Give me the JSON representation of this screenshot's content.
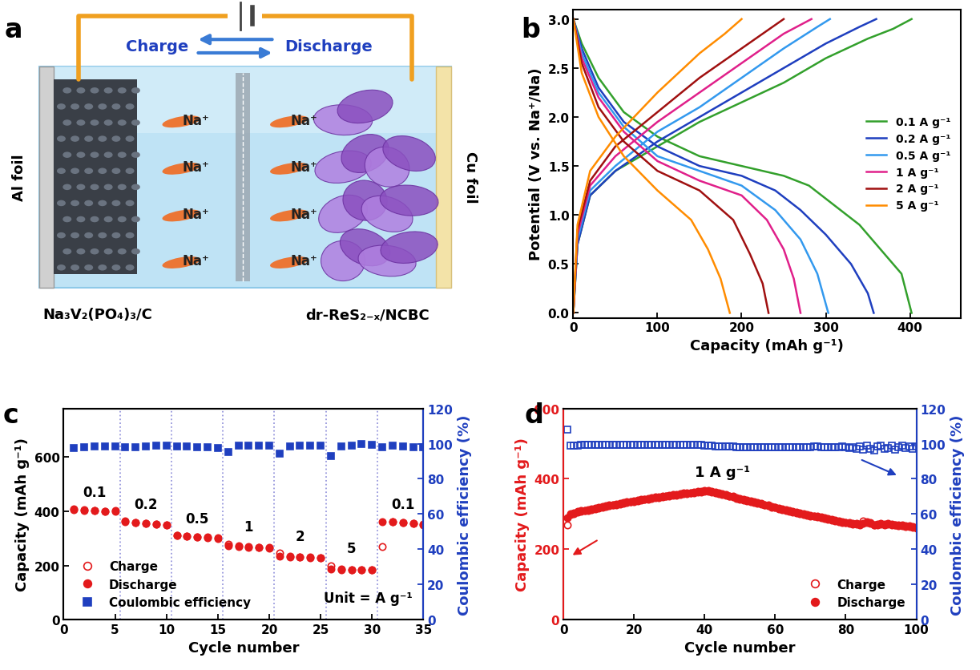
{
  "diagram": {
    "panel_label": "a",
    "directions": {
      "charge": "Charge",
      "discharge": "Discharge"
    },
    "ions": {
      "cathode_side": [
        "Na⁺",
        "Na⁺",
        "Na⁺",
        "Na⁺"
      ],
      "anode_side": [
        "Na⁺",
        "Na⁺",
        "Na⁺",
        "Na⁺"
      ]
    },
    "current_collectors": {
      "cathode": "Al foil",
      "anode": "Cu foil"
    },
    "electrodes": {
      "cathode": "Na₃V₂(PO₄)₃/C",
      "anode": "dr-ReS₂₋ₓ/NCBC"
    }
  },
  "chart_data": [
    {
      "panel_label": "b",
      "type": "line",
      "xlabel": "Capacity (mAh g⁻¹)",
      "ylabel": "Potential (V vs. Na⁺/Na)",
      "xlim": [
        0,
        460
      ],
      "xticks": [
        0,
        100,
        200,
        300,
        400
      ],
      "ylim": [
        -0.05,
        3.1
      ],
      "yticks": [
        {
          "value": 0,
          "label": "0.0"
        },
        0.5,
        {
          "value": 1,
          "label": "1.0"
        },
        1.5,
        {
          "value": 2,
          "label": "2.0"
        },
        2.5,
        {
          "value": 3,
          "label": "3.0"
        }
      ],
      "legend": "center right",
      "series": [
        {
          "name": "0.1 A g⁻¹",
          "color": "#33a02c",
          "curves": [
            {
              "x": [
                0,
                10,
                30,
                60,
                100,
                150,
                200,
                250,
                280,
                310,
                340,
                370,
                390,
                402
              ],
              "values": [
                3.0,
                2.75,
                2.4,
                2.05,
                1.8,
                1.6,
                1.5,
                1.4,
                1.3,
                1.1,
                0.9,
                0.6,
                0.4,
                0.0
              ]
            },
            {
              "x": [
                0,
                5,
                20,
                50,
                100,
                150,
                200,
                250,
                300,
                350,
                380,
                402
              ],
              "values": [
                0.0,
                0.7,
                1.2,
                1.45,
                1.7,
                1.95,
                2.15,
                2.35,
                2.6,
                2.8,
                2.9,
                3.0
              ]
            }
          ]
        },
        {
          "name": "0.2 A g⁻¹",
          "color": "#1f3fbf",
          "curves": [
            {
              "x": [
                0,
                10,
                30,
                60,
                100,
                150,
                200,
                240,
                270,
                300,
                330,
                350,
                357
              ],
              "values": [
                3.0,
                2.7,
                2.3,
                1.95,
                1.7,
                1.5,
                1.4,
                1.25,
                1.05,
                0.8,
                0.5,
                0.2,
                0.0
              ]
            },
            {
              "x": [
                0,
                5,
                20,
                50,
                100,
                150,
                200,
                250,
                300,
                340,
                360
              ],
              "values": [
                0.0,
                0.7,
                1.2,
                1.45,
                1.75,
                2.0,
                2.25,
                2.5,
                2.75,
                2.92,
                3.0
              ]
            }
          ]
        },
        {
          "name": "0.5 A g⁻¹",
          "color": "#3399ee",
          "curves": [
            {
              "x": [
                0,
                10,
                30,
                60,
                100,
                150,
                200,
                240,
                270,
                290,
                303
              ],
              "values": [
                3.0,
                2.65,
                2.25,
                1.9,
                1.6,
                1.45,
                1.3,
                1.05,
                0.75,
                0.4,
                0.0
              ]
            },
            {
              "x": [
                0,
                5,
                20,
                50,
                100,
                150,
                200,
                250,
                290,
                305
              ],
              "values": [
                0.0,
                0.75,
                1.25,
                1.5,
                1.85,
                2.1,
                2.4,
                2.7,
                2.92,
                3.0
              ]
            }
          ]
        },
        {
          "name": "1 A g⁻¹",
          "color": "#e0208a",
          "curves": [
            {
              "x": [
                0,
                10,
                30,
                60,
                100,
                150,
                200,
                230,
                250,
                262,
                270
              ],
              "values": [
                3.0,
                2.6,
                2.2,
                1.85,
                1.55,
                1.35,
                1.2,
                0.95,
                0.65,
                0.35,
                0.0
              ]
            },
            {
              "x": [
                0,
                5,
                20,
                50,
                100,
                150,
                200,
                250,
                283
              ],
              "values": [
                0.0,
                0.8,
                1.3,
                1.6,
                1.95,
                2.25,
                2.55,
                2.85,
                3.0
              ]
            }
          ]
        },
        {
          "name": "2 A g⁻¹",
          "color": "#a01010",
          "curves": [
            {
              "x": [
                0,
                10,
                30,
                60,
                100,
                150,
                190,
                210,
                225,
                232
              ],
              "values": [
                3.0,
                2.55,
                2.1,
                1.75,
                1.45,
                1.25,
                0.95,
                0.6,
                0.3,
                0.0
              ]
            },
            {
              "x": [
                0,
                5,
                20,
                50,
                100,
                150,
                200,
                230,
                250
              ],
              "values": [
                0.0,
                0.85,
                1.35,
                1.7,
                2.05,
                2.4,
                2.7,
                2.88,
                3.0
              ]
            }
          ]
        },
        {
          "name": "5 A g⁻¹",
          "color": "#ff8c00",
          "curves": [
            {
              "x": [
                0,
                10,
                30,
                60,
                100,
                140,
                160,
                175,
                186
              ],
              "values": [
                3.0,
                2.45,
                2.0,
                1.6,
                1.25,
                0.95,
                0.65,
                0.35,
                0.0
              ]
            },
            {
              "x": [
                0,
                5,
                20,
                50,
                100,
                150,
                180,
                200
              ],
              "values": [
                0.0,
                0.9,
                1.45,
                1.8,
                2.25,
                2.65,
                2.85,
                3.0
              ]
            }
          ]
        }
      ]
    },
    {
      "panel_label": "c",
      "type": "scatter",
      "xlabel": "Cycle number",
      "ylabel": "Capacity (mAh g⁻¹)",
      "y2label": "Coulombic efficiency (%)",
      "xlim": [
        0,
        35
      ],
      "xticks": [
        0,
        5,
        10,
        15,
        20,
        25,
        30,
        35
      ],
      "ylim": [
        0,
        780
      ],
      "yticks": [
        0,
        200,
        400,
        600
      ],
      "y2lim": [
        0,
        120
      ],
      "y2ticks": [
        0,
        20,
        40,
        60,
        80,
        100,
        120
      ],
      "legend": "lower left",
      "annotation": "Unit = A g⁻¹",
      "rate_labels": [
        "0.1",
        "0.2",
        "0.5",
        "1",
        "2",
        "5",
        "0.1"
      ],
      "dividers": [
        5.5,
        10.5,
        15.5,
        20.5,
        25.5,
        30.5
      ],
      "x": [
        1,
        2,
        3,
        4,
        5,
        6,
        7,
        8,
        9,
        10,
        11,
        12,
        13,
        14,
        15,
        16,
        17,
        18,
        19,
        20,
        21,
        22,
        23,
        24,
        25,
        26,
        27,
        28,
        29,
        30,
        31,
        32,
        33,
        34,
        35
      ],
      "series": [
        {
          "name": "Charge",
          "color": "#e31a1c",
          "marker": "open_circle",
          "values": [
            408,
            406,
            404,
            400,
            402,
            364,
            360,
            357,
            354,
            351,
            311,
            308,
            306,
            304,
            302,
            280,
            272,
            270,
            268,
            266,
            245,
            234,
            231,
            230,
            229,
            200,
            187,
            185,
            184,
            184,
            270,
            363,
            360,
            356,
            352
          ]
        },
        {
          "name": "Discharge",
          "color": "#e31a1c",
          "marker": "filled_circle",
          "values": [
            405,
            403,
            402,
            400,
            400,
            362,
            358,
            355,
            352,
            350,
            310,
            307,
            305,
            303,
            300,
            272,
            270,
            268,
            267,
            265,
            235,
            232,
            230,
            229,
            228,
            186,
            185,
            184,
            184,
            184,
            363,
            362,
            358,
            355,
            350
          ]
        },
        {
          "name": "Coulombic efficiency",
          "color": "#1f3fbf",
          "marker": "filled_square",
          "axis": "y2",
          "values": [
            97.5,
            98,
            98.5,
            98.5,
            98.5,
            98,
            98,
            98.5,
            99,
            99,
            98.5,
            98.5,
            98,
            98,
            97.5,
            95,
            99,
            99,
            99,
            99,
            94.5,
            98.5,
            99,
            99,
            99,
            93,
            98.5,
            99,
            100,
            99.5,
            98,
            99,
            98.5,
            98,
            98
          ]
        }
      ]
    },
    {
      "panel_label": "d",
      "type": "scatter",
      "xlabel": "Cycle number",
      "ylabel": "Capacity (mAh g⁻¹)",
      "y2label": "Coulombic efficiency (%)",
      "xlim": [
        0,
        100
      ],
      "xticks": [
        0,
        20,
        40,
        60,
        80,
        100
      ],
      "ylim": [
        0,
        600
      ],
      "yticks": [
        0,
        200,
        400,
        600
      ],
      "y2lim": [
        0,
        120
      ],
      "y2ticks": [
        0,
        20,
        40,
        60,
        80,
        100,
        120
      ],
      "legend": "lower right",
      "annotation": "1 A g⁻¹",
      "x": [
        1,
        2,
        3,
        4,
        5,
        6,
        7,
        8,
        9,
        10,
        11,
        12,
        13,
        14,
        15,
        16,
        17,
        18,
        19,
        20,
        21,
        22,
        23,
        24,
        25,
        26,
        27,
        28,
        29,
        30,
        31,
        32,
        33,
        34,
        35,
        36,
        37,
        38,
        39,
        40,
        41,
        42,
        43,
        44,
        45,
        46,
        47,
        48,
        49,
        50,
        51,
        52,
        53,
        54,
        55,
        56,
        57,
        58,
        59,
        60,
        61,
        62,
        63,
        64,
        65,
        66,
        67,
        68,
        69,
        70,
        71,
        72,
        73,
        74,
        75,
        76,
        77,
        78,
        79,
        80,
        81,
        82,
        83,
        84,
        85,
        86,
        87,
        88,
        89,
        90,
        91,
        92,
        93,
        94,
        95,
        96,
        97,
        98,
        99,
        100
      ],
      "series": [
        {
          "name": "Charge",
          "color": "#e31a1c",
          "marker": "open_circle",
          "values": [
            270,
            300,
            304,
            307,
            309,
            311,
            313,
            315,
            317,
            319,
            321,
            323,
            325,
            327,
            329,
            331,
            333,
            335,
            336,
            338,
            340,
            341,
            343,
            345,
            346,
            348,
            349,
            351,
            352,
            354,
            355,
            356,
            358,
            359,
            360,
            361,
            363,
            364,
            365,
            366,
            366,
            365,
            363,
            360,
            358,
            355,
            352,
            350,
            347,
            345,
            342,
            340,
            337,
            335,
            332,
            330,
            327,
            325,
            322,
            320,
            317,
            315,
            312,
            310,
            307,
            305,
            303,
            301,
            299,
            297,
            295,
            293,
            291,
            289,
            287,
            285,
            283,
            281,
            279,
            277,
            276,
            274,
            273,
            272,
            280,
            278,
            275,
            270,
            272,
            273,
            272,
            274,
            271,
            270,
            269,
            268,
            267,
            266,
            264,
            262
          ]
        },
        {
          "name": "Discharge",
          "color": "#e31a1c",
          "marker": "filled_circle",
          "values": [
            290,
            298,
            302,
            305,
            307,
            309,
            311,
            313,
            315,
            317,
            319,
            321,
            323,
            325,
            327,
            329,
            331,
            333,
            334,
            336,
            338,
            339,
            341,
            343,
            344,
            346,
            347,
            349,
            350,
            352,
            353,
            354,
            356,
            357,
            358,
            359,
            361,
            362,
            363,
            364,
            364,
            363,
            361,
            358,
            356,
            353,
            350,
            348,
            345,
            343,
            340,
            338,
            335,
            333,
            330,
            328,
            325,
            323,
            320,
            318,
            315,
            313,
            310,
            308,
            305,
            303,
            301,
            299,
            297,
            295,
            293,
            291,
            289,
            287,
            285,
            283,
            281,
            279,
            277,
            275,
            274,
            272,
            271,
            270,
            274,
            276,
            273,
            268,
            270,
            271,
            270,
            272,
            269,
            268,
            267,
            266,
            265,
            264,
            262,
            260
          ]
        },
        {
          "color": "#1f3fbf",
          "marker": "open_square",
          "axis": "y2",
          "values": [
            108,
            99,
            99,
            99,
            99.5,
            99.5,
            99.5,
            99.5,
            99.5,
            99.5,
            99.5,
            99.5,
            99.5,
            99.5,
            99.5,
            99.5,
            99.5,
            99.5,
            99.5,
            99.5,
            99.5,
            99.5,
            99.5,
            99.5,
            99.5,
            99.5,
            99.5,
            99.5,
            99.5,
            99.5,
            99.5,
            99.5,
            99.5,
            99.5,
            99.5,
            99.5,
            99.5,
            99.5,
            99.5,
            99,
            99,
            99,
            98.5,
            98.5,
            98.5,
            98.5,
            98.5,
            98.5,
            98,
            98,
            98,
            98,
            98,
            98,
            98,
            98,
            98,
            98,
            98,
            98,
            98,
            98,
            98,
            98,
            98,
            98,
            98,
            98,
            98,
            98,
            98.5,
            98.5,
            98,
            98,
            98,
            98,
            98,
            98,
            98.5,
            98,
            97.5,
            98,
            97,
            98.5,
            96.5,
            99,
            97,
            96,
            98.5,
            99,
            97,
            97.5,
            99,
            96.5,
            98,
            99,
            97.5,
            98.5,
            97,
            98.5
          ]
        }
      ]
    }
  ]
}
